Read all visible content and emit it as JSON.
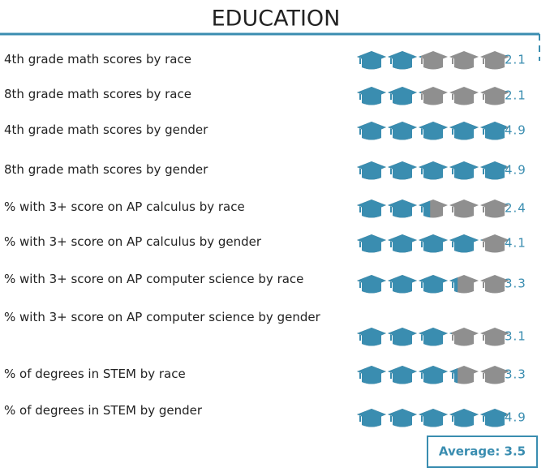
{
  "chart_data": {
    "type": "pictograph",
    "title": "EDUCATION",
    "categories": [
      "4th grade math scores by race",
      "8th grade math scores by race",
      "4th grade math scores by gender",
      "8th grade math scores by gender",
      "% with 3+ score on AP calculus by race",
      "% with 3+ score on AP calculus by gender",
      "% with 3+ score on AP computer science by race",
      "% with 3+ score on AP computer science by gender",
      "% of degrees in STEM by race",
      "% of degrees in STEM by gender"
    ],
    "values": [
      2.1,
      2.1,
      4.9,
      4.9,
      2.4,
      4.1,
      3.3,
      3.1,
      3.3,
      4.9
    ],
    "xlim": [
      0,
      5
    ],
    "color": "#3a8db0",
    "empty_color": "#8f8f8f",
    "annotation": "Average: 3.5"
  }
}
